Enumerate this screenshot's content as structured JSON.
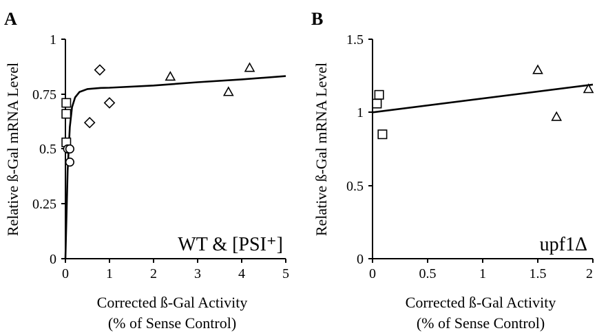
{
  "chart_data": [
    {
      "panel_label": "A",
      "type": "scatter",
      "xlabel": "Corrected ß-Gal Activity",
      "xlabel2": "(% of Sense Control)",
      "ylabel": "Relative ß-Gal mRNA Level",
      "xlim": [
        0,
        5
      ],
      "ylim": [
        0,
        1
      ],
      "x_ticks": [
        "0",
        "1",
        "2",
        "3",
        "4",
        "5"
      ],
      "y_ticks": [
        "0",
        "0.25",
        "0.5",
        "0.75",
        "1"
      ],
      "annotation": "WT & [PSI⁺]",
      "grid": false,
      "series": [
        {
          "marker": "square",
          "points": [
            [
              0.02,
              0.71
            ],
            [
              0.02,
              0.66
            ],
            [
              0.02,
              0.53
            ]
          ]
        },
        {
          "marker": "circle",
          "points": [
            [
              0.05,
              0.5
            ],
            [
              0.1,
              0.5
            ],
            [
              0.1,
              0.44
            ]
          ]
        },
        {
          "marker": "diamond",
          "points": [
            [
              0.55,
              0.62
            ],
            [
              0.78,
              0.86
            ],
            [
              1.0,
              0.71
            ]
          ]
        },
        {
          "marker": "triangle",
          "points": [
            [
              2.38,
              0.83
            ],
            [
              3.7,
              0.76
            ],
            [
              4.18,
              0.87
            ]
          ]
        }
      ],
      "fit_line": [
        [
          0,
          0.0
        ],
        [
          0.05,
          0.4
        ],
        [
          0.1,
          0.6
        ],
        [
          0.15,
          0.69
        ],
        [
          0.22,
          0.735
        ],
        [
          0.32,
          0.76
        ],
        [
          0.5,
          0.773
        ],
        [
          0.8,
          0.778
        ],
        [
          1.0,
          0.779
        ],
        [
          2.0,
          0.789
        ],
        [
          3.0,
          0.804
        ],
        [
          4.0,
          0.817
        ],
        [
          5.0,
          0.832
        ]
      ]
    },
    {
      "panel_label": "B",
      "type": "scatter",
      "xlabel": "Corrected ß-Gal Activity",
      "xlabel2": "(% of Sense Control)",
      "ylabel": "Relative ß-Gal mRNA Level",
      "xlim": [
        0,
        2
      ],
      "ylim": [
        0,
        1.5
      ],
      "x_ticks": [
        "0",
        "0.5",
        "1",
        "1.5",
        "2"
      ],
      "y_ticks": [
        "0",
        "0.5",
        "1",
        "1.5"
      ],
      "annotation": "upf1Δ",
      "grid": false,
      "series": [
        {
          "marker": "square",
          "points": [
            [
              0.04,
              1.06
            ],
            [
              0.06,
              1.12
            ],
            [
              0.09,
              0.85
            ]
          ]
        },
        {
          "marker": "triangle",
          "points": [
            [
              1.5,
              1.29
            ],
            [
              1.67,
              0.97
            ],
            [
              1.96,
              1.16
            ]
          ]
        }
      ],
      "fit_line": [
        [
          0,
          1.0
        ],
        [
          2.0,
          1.19
        ]
      ]
    }
  ]
}
